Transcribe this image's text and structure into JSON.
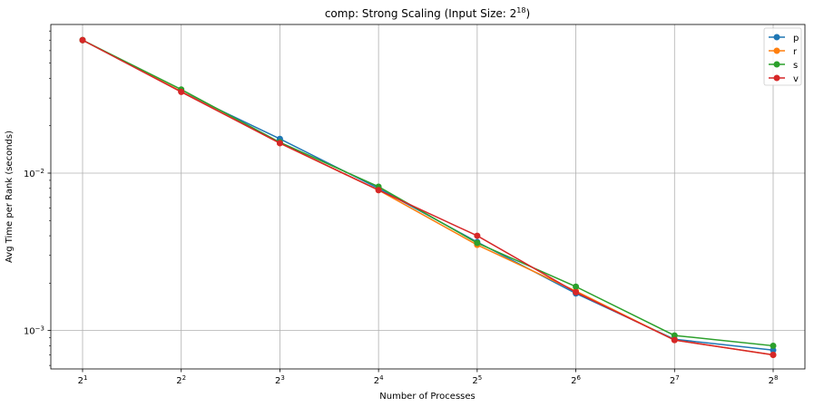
{
  "chart_data": {
    "type": "line",
    "title": "comp: Strong Scaling (Input Size: 2",
    "title_sup": "18",
    "title_end": ")",
    "xlabel": "Number of Processes",
    "ylabel": "Avg Time per Rank (seconds)",
    "x": [
      2,
      4,
      8,
      16,
      32,
      64,
      128,
      256
    ],
    "x_tick_labels": [
      {
        "base": "2",
        "exp": "1"
      },
      {
        "base": "2",
        "exp": "2"
      },
      {
        "base": "2",
        "exp": "3"
      },
      {
        "base": "2",
        "exp": "4"
      },
      {
        "base": "2",
        "exp": "5"
      },
      {
        "base": "2",
        "exp": "6"
      },
      {
        "base": "2",
        "exp": "7"
      },
      {
        "base": "2",
        "exp": "8"
      }
    ],
    "x_scale": "log2",
    "y_scale": "log10",
    "ylim": [
      0.00057,
      0.088
    ],
    "y_tick_labels": [
      {
        "value": 0.01,
        "base": "10",
        "exp": "−2"
      },
      {
        "value": 0.001,
        "base": "10",
        "exp": "−3"
      }
    ],
    "grid": true,
    "legend_placement": "top-right",
    "series": [
      {
        "name": "p",
        "color": "#1f77b4",
        "values": [
          0.07,
          0.033,
          0.0165,
          0.008,
          0.00365,
          0.00172,
          0.00088,
          0.00075
        ]
      },
      {
        "name": "r",
        "color": "#ff7f0e",
        "values": [
          0.07,
          0.033,
          0.0155,
          0.0078,
          0.0035,
          0.00178,
          0.00087,
          0.0007
        ]
      },
      {
        "name": "s",
        "color": "#2ca02c",
        "values": [
          0.07,
          0.034,
          0.0157,
          0.0082,
          0.0036,
          0.0019,
          0.00093,
          0.0008
        ]
      },
      {
        "name": "v",
        "color": "#d62728",
        "values": [
          0.07,
          0.0328,
          0.0155,
          0.0078,
          0.004,
          0.00175,
          0.00087,
          0.0007
        ]
      }
    ]
  }
}
